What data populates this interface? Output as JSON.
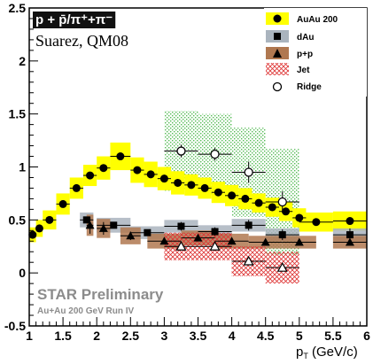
{
  "chart_data": {
    "type": "scatter",
    "title": "p + p̄/π⁺+π⁻",
    "subtitle": "Suarez, QM08",
    "xlabel": "p",
    "xlabel_sub": "T",
    "xlabel_unit": " (GeV/c)",
    "ylabel": "",
    "xlim": [
      1,
      6
    ],
    "ylim": [
      -0.5,
      2.5
    ],
    "xticks": [
      "1",
      "1.5",
      "2",
      "2.5",
      "3",
      "3.5",
      "4",
      "4.5",
      "5",
      "5.5",
      "6"
    ],
    "yticks": [
      "-0.5",
      "0",
      "0.5",
      "1",
      "1.5",
      "2",
      "2.5"
    ],
    "grid": false,
    "legend_position": "top-right",
    "annotations": [
      "STAR Preliminary",
      "Au+Au 200 GeV Run IV"
    ],
    "colors": {
      "auau_band": "#ffff00",
      "dau_band": "#aab4be",
      "pp_band": "#b07850",
      "jet_band": "#dd3333",
      "ridge_band": "#55bb55"
    },
    "series": [
      {
        "name": "AuAu 200",
        "marker": "filled-circle",
        "x": [
          1.05,
          1.15,
          1.3,
          1.5,
          1.7,
          1.9,
          2.1,
          2.35,
          2.6,
          2.8,
          3.0,
          3.2,
          3.4,
          3.6,
          3.8,
          4.0,
          4.2,
          4.4,
          4.6,
          4.8,
          5.0,
          5.25,
          5.75
        ],
        "y": [
          0.36,
          0.42,
          0.5,
          0.65,
          0.8,
          0.92,
          0.99,
          1.1,
          0.97,
          0.93,
          0.89,
          0.85,
          0.83,
          0.8,
          0.76,
          0.73,
          0.7,
          0.66,
          0.62,
          0.58,
          0.52,
          0.48,
          0.49
        ],
        "xerr": [
          0.05,
          0.05,
          0.1,
          0.1,
          0.1,
          0.1,
          0.1,
          0.15,
          0.1,
          0.1,
          0.1,
          0.1,
          0.1,
          0.1,
          0.1,
          0.1,
          0.1,
          0.1,
          0.1,
          0.1,
          0.1,
          0.25,
          0.25
        ],
        "yerr": [
          0.02,
          0.02,
          0.02,
          0.02,
          0.02,
          0.02,
          0.02,
          0.03,
          0.03,
          0.03,
          0.03,
          0.03,
          0.03,
          0.03,
          0.03,
          0.03,
          0.03,
          0.03,
          0.03,
          0.03,
          0.03,
          0.03,
          0.03
        ],
        "band": [
          0.07,
          0.08,
          0.09,
          0.1,
          0.1,
          0.1,
          0.11,
          0.13,
          0.12,
          0.12,
          0.11,
          0.11,
          0.1,
          0.1,
          0.1,
          0.1,
          0.1,
          0.09,
          0.09,
          0.09,
          0.09,
          0.09,
          0.09
        ]
      },
      {
        "name": "dAu",
        "marker": "filled-square",
        "x": [
          1.85,
          2.25,
          2.75,
          3.25,
          3.75,
          4.25,
          4.75,
          5.75
        ],
        "y": [
          0.5,
          0.45,
          0.38,
          0.44,
          0.39,
          0.45,
          0.36,
          0.36
        ],
        "xerr": [
          0.1,
          0.25,
          0.25,
          0.25,
          0.25,
          0.25,
          0.25,
          0.25
        ],
        "yerr": [
          0.03,
          0.03,
          0.03,
          0.04,
          0.04,
          0.05,
          0.05,
          0.06
        ],
        "band": [
          0.07,
          0.07,
          0.06,
          0.06,
          0.06,
          0.06,
          0.06,
          0.06
        ]
      },
      {
        "name": "p+p",
        "marker": "filled-triangle",
        "x": [
          1.9,
          2.1,
          2.5,
          3.0,
          3.5,
          4.0,
          4.5,
          5.0,
          5.75
        ],
        "y": [
          0.45,
          0.42,
          0.35,
          0.3,
          0.33,
          0.3,
          0.29,
          0.29,
          0.29
        ],
        "xerr": [
          0.05,
          0.1,
          0.15,
          0.25,
          0.25,
          0.25,
          0.25,
          0.25,
          0.25
        ],
        "yerr": [
          0.08,
          0.06,
          0.04,
          0.03,
          0.03,
          0.03,
          0.03,
          0.03,
          0.03
        ],
        "band": [
          0.1,
          0.09,
          0.08,
          0.07,
          0.07,
          0.07,
          0.06,
          0.06,
          0.06
        ]
      },
      {
        "name": "Jet",
        "marker": "open-triangle",
        "x": [
          3.25,
          3.75,
          4.25,
          4.75
        ],
        "y": [
          0.25,
          0.25,
          0.11,
          0.05
        ],
        "xerr": [
          0.25,
          0.25,
          0.25,
          0.25
        ],
        "yerr": [
          0.03,
          0.03,
          0.03,
          0.03
        ],
        "band": [
          0.13,
          0.13,
          0.14,
          0.15
        ]
      },
      {
        "name": "Ridge",
        "marker": "open-circle",
        "x": [
          3.25,
          3.75,
          4.25,
          4.75
        ],
        "y": [
          1.15,
          1.12,
          0.95,
          0.67
        ],
        "xerr": [
          0.25,
          0.25,
          0.25,
          0.25
        ],
        "yerr": [
          0.06,
          0.06,
          0.1,
          0.1
        ],
        "band": [
          0.38,
          0.38,
          0.42,
          0.5
        ]
      }
    ]
  }
}
